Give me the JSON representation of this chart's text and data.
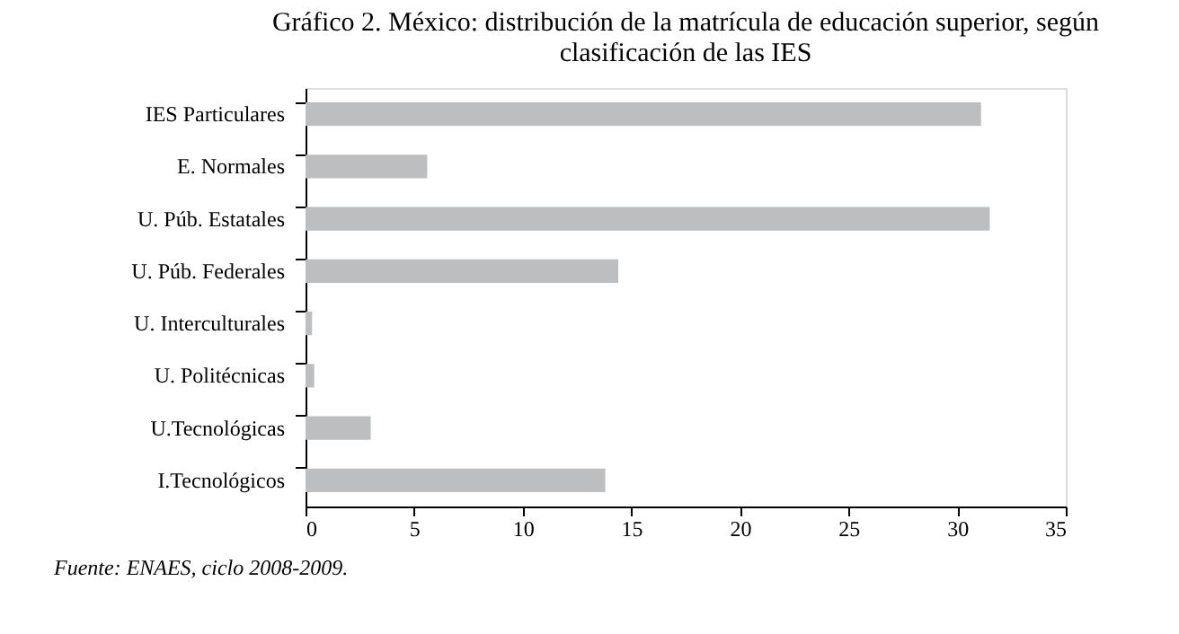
{
  "chart_data": {
    "type": "bar",
    "orientation": "horizontal",
    "title": "Gráfico 2. México: distribución de la matrícula de educación superior, según clasificación de las IES",
    "categories": [
      "IES Particulares",
      "E. Normales",
      "U. Púb. Estatales",
      "U. Púb. Federales",
      "U. Interculturales",
      "U. Politécnicas",
      "U.Tecnológicas",
      "I.Tecnológicos"
    ],
    "values": [
      31.1,
      5.6,
      31.5,
      14.4,
      0.3,
      0.4,
      3.0,
      13.8
    ],
    "color": "#bdbec0",
    "xlim": [
      0,
      35
    ],
    "xticks": [
      0,
      5,
      10,
      15,
      20,
      25,
      30,
      35
    ],
    "grid": false,
    "annotations": [
      "Fuente: ENAES, ciclo 2008-2009."
    ]
  }
}
